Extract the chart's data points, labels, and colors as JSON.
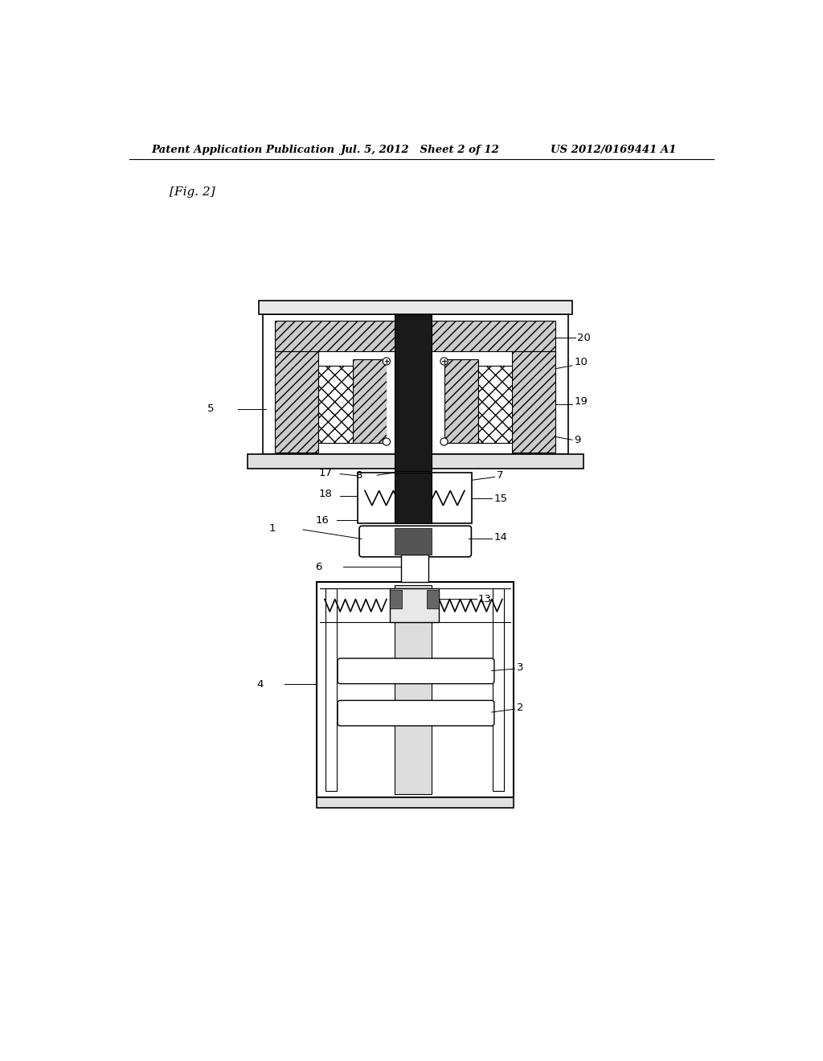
{
  "bg_color": "#ffffff",
  "title_left": "Patent Application Publication",
  "title_mid": "Jul. 5, 2012   Sheet 2 of 12",
  "title_right": "US 2012/0169441 A1",
  "fig_label": "[Fig. 2]"
}
